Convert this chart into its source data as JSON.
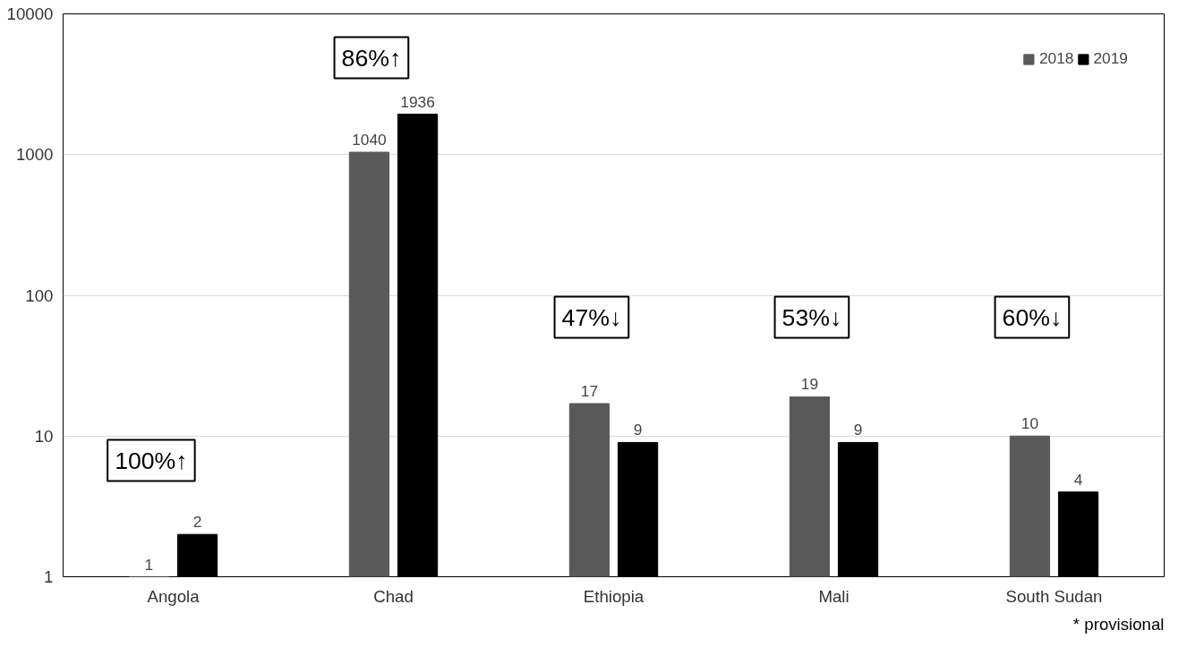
{
  "chart_data": {
    "type": "bar",
    "categories": [
      "Angola",
      "Chad",
      "Ethiopia",
      "Mali",
      "South Sudan"
    ],
    "series": [
      {
        "name": "2018",
        "color": "#595959",
        "values": [
          1,
          1040,
          17,
          19,
          10
        ]
      },
      {
        "name": "2019",
        "color": "#000000",
        "values": [
          2,
          1936,
          9,
          9,
          4
        ]
      }
    ],
    "log": true,
    "ylim": [
      1,
      10000
    ],
    "yticks": [
      1,
      10,
      100,
      1000,
      10000
    ],
    "grid": "y",
    "legend": "top right",
    "data_labels": true,
    "annotations": [
      "100%↑",
      "86%↑",
      "47%↓",
      "53%↓",
      "60%↓",
      "* provisional"
    ]
  }
}
